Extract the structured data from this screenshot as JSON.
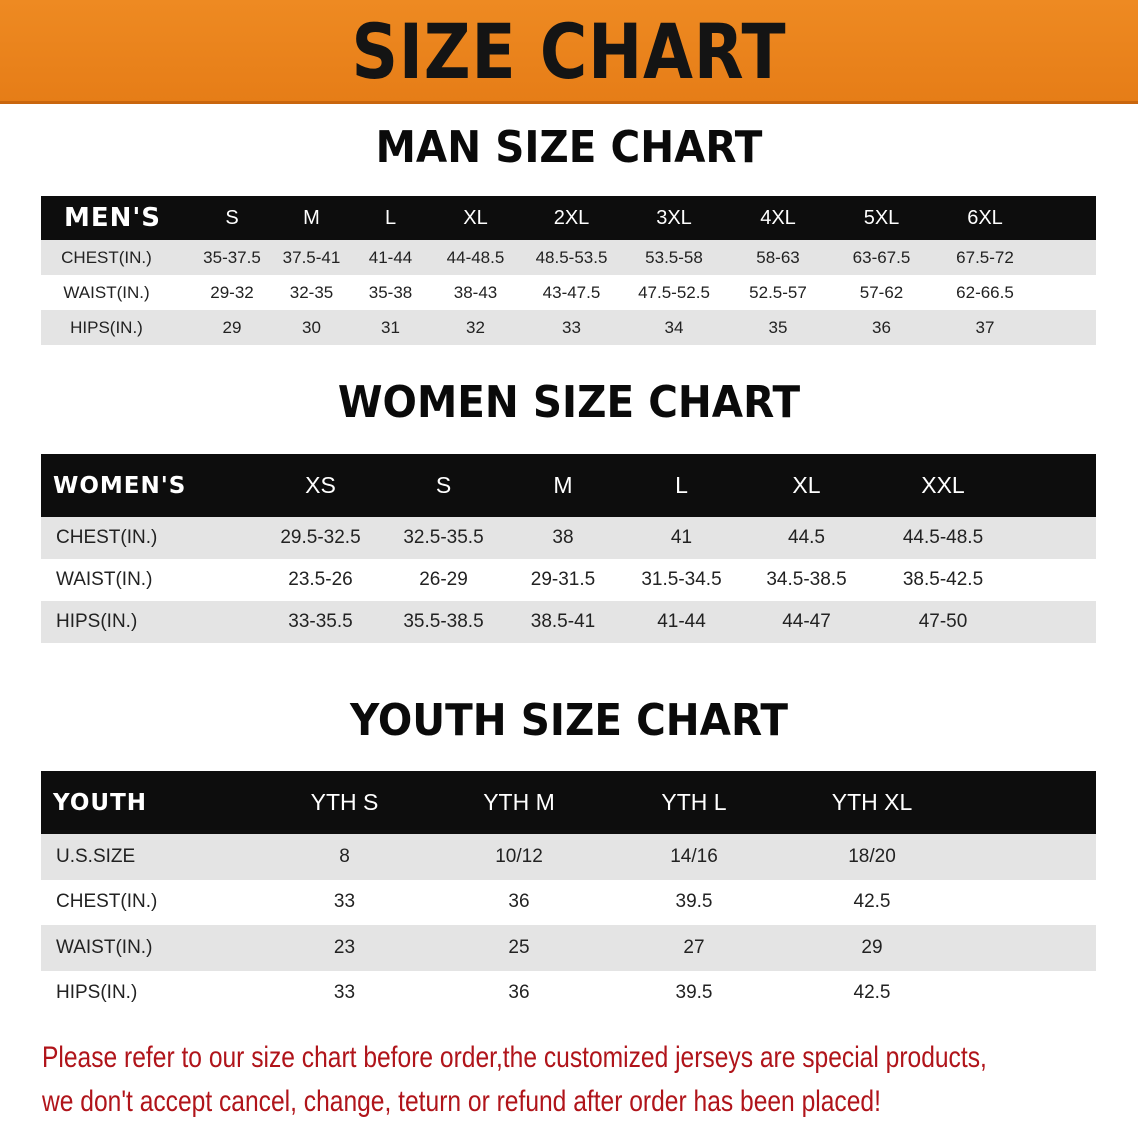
{
  "banner_title": "SIZE CHART",
  "colors": {
    "banner": "#e8821b",
    "header_row": "#0d0d0d",
    "stripe": "#e4e4e4",
    "notice": "#b0141a"
  },
  "men": {
    "title": "MAN SIZE CHART",
    "header": [
      "MEN'S",
      "S",
      "M",
      "L",
      "XL",
      "2XL",
      "3XL",
      "4XL",
      "5XL",
      "6XL"
    ],
    "rows": [
      [
        "CHEST(IN.)",
        "35-37.5",
        "37.5-41",
        "41-44",
        "44-48.5",
        "48.5-53.5",
        "53.5-58",
        "58-63",
        "63-67.5",
        "67.5-72"
      ],
      [
        "WAIST(IN.)",
        "29-32",
        "32-35",
        "35-38",
        "38-43",
        "43-47.5",
        "47.5-52.5",
        "52.5-57",
        "57-62",
        "62-66.5"
      ],
      [
        "HIPS(IN.)",
        "29",
        "30",
        "31",
        "32",
        "33",
        "34",
        "35",
        "36",
        "37"
      ]
    ]
  },
  "women": {
    "title": "WOMEN SIZE CHART",
    "header": [
      "WOMEN'S",
      "XS",
      "S",
      "M",
      "L",
      "XL",
      "XXL"
    ],
    "rows": [
      [
        "CHEST(IN.)",
        "29.5-32.5",
        "32.5-35.5",
        "38",
        "41",
        "44.5",
        "44.5-48.5"
      ],
      [
        "WAIST(IN.)",
        "23.5-26",
        "26-29",
        "29-31.5",
        "31.5-34.5",
        "34.5-38.5",
        "38.5-42.5"
      ],
      [
        "HIPS(IN.)",
        "33-35.5",
        "35.5-38.5",
        "38.5-41",
        "41-44",
        "44-47",
        "47-50"
      ]
    ]
  },
  "youth": {
    "title": "YOUTH SIZE CHART",
    "header": [
      "YOUTH",
      "YTH S",
      "YTH M",
      "YTH L",
      "YTH XL"
    ],
    "rows": [
      [
        "U.S.SIZE",
        "8",
        "10/12",
        "14/16",
        "18/20"
      ],
      [
        "CHEST(IN.)",
        "33",
        "36",
        "39.5",
        "42.5"
      ],
      [
        "WAIST(IN.)",
        "23",
        "25",
        "27",
        "29"
      ],
      [
        "HIPS(IN.)",
        "33",
        "36",
        "39.5",
        "42.5"
      ]
    ]
  },
  "notice": {
    "line1": "Please refer to our size chart before order,the customized jerseys are special products,",
    "line2": "we don't accept cancel, change, teturn or refund after order has been placed!"
  }
}
